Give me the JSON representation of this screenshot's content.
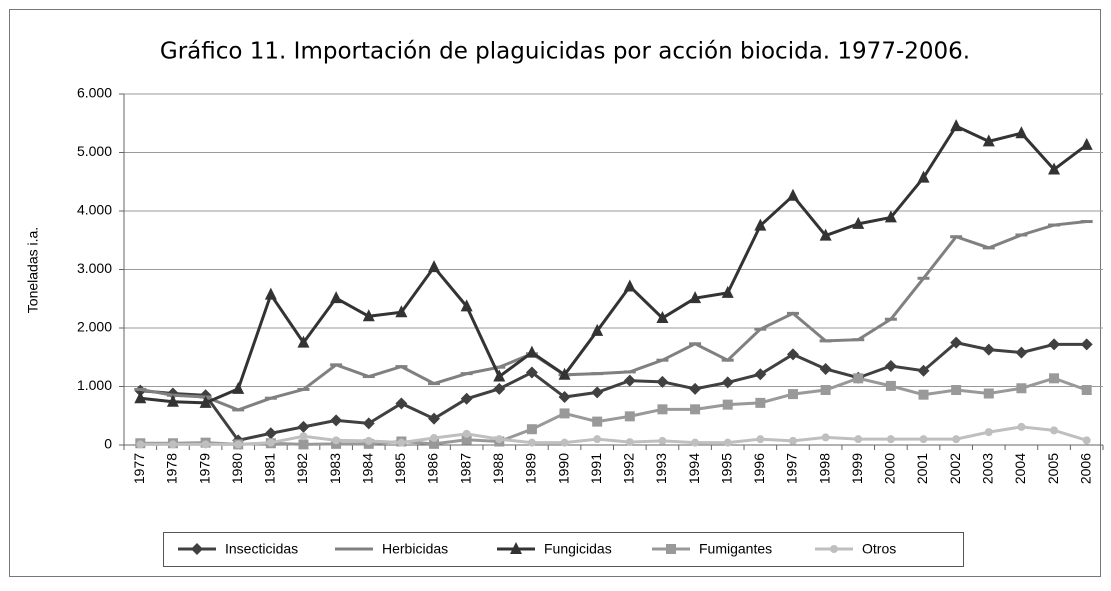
{
  "chart_data": {
    "type": "line",
    "title": "Gráfico 11. Importación de plaguicidas por acción biocida. 1977-2006.",
    "y_label": "Toneladas i.a.",
    "categories": [
      "1977",
      "1978",
      "1979",
      "1980",
      "1981",
      "1982",
      "1983",
      "1984",
      "1985",
      "1986",
      "1987",
      "1988",
      "1989",
      "1990",
      "1991",
      "1992",
      "1993",
      "1994",
      "1995",
      "1996",
      "1997",
      "1998",
      "1999",
      "2000",
      "2001",
      "2002",
      "2003",
      "2004",
      "2005",
      "2006"
    ],
    "ylim": [
      0,
      6000
    ],
    "yticks": [
      0,
      {
        "value": 1000,
        "label": "1.000"
      },
      {
        "value": 2000,
        "label": "2.000"
      },
      {
        "value": 3000,
        "label": "3.000"
      },
      {
        "value": 4000,
        "label": "4.000"
      },
      {
        "value": 5000,
        "label": "5.000"
      },
      {
        "value": 6000,
        "label": "6.000"
      }
    ],
    "grid": true,
    "legend": "bottom",
    "series": [
      {
        "name": "Insecticidas",
        "color": "#404040",
        "marker": "diamond",
        "values": [
          930,
          880,
          850,
          80,
          200,
          310,
          420,
          370,
          710,
          450,
          790,
          960,
          1240,
          820,
          900,
          1100,
          1080,
          960,
          1070,
          1210,
          1550,
          1300,
          1150,
          1350,
          1270,
          1750,
          1630,
          1580,
          1720,
          1720
        ]
      },
      {
        "name": "Herbicidas",
        "color": "#808080",
        "marker": "dash",
        "values": [
          950,
          850,
          820,
          600,
          800,
          950,
          1370,
          1170,
          1340,
          1050,
          1220,
          1330,
          1560,
          1200,
          1220,
          1250,
          1450,
          1730,
          1450,
          1980,
          2250,
          1780,
          1800,
          2150,
          2850,
          3560,
          3370,
          3590,
          3760,
          3820
        ]
      },
      {
        "name": "Fungicidas",
        "color": "#333333",
        "marker": "triangle",
        "values": [
          800,
          740,
          720,
          960,
          2570,
          1750,
          2510,
          2200,
          2270,
          3040,
          2370,
          1170,
          1580,
          1200,
          1950,
          2710,
          2170,
          2510,
          2600,
          3750,
          4260,
          3580,
          3780,
          3890,
          4570,
          5450,
          5190,
          5330,
          4710,
          5130
        ]
      },
      {
        "name": "Fumigantes",
        "color": "#999999",
        "marker": "square",
        "values": [
          30,
          30,
          40,
          10,
          30,
          10,
          20,
          20,
          60,
          20,
          90,
          60,
          270,
          540,
          400,
          490,
          610,
          610,
          690,
          720,
          870,
          940,
          1140,
          1010,
          860,
          940,
          880,
          970,
          1140,
          940
        ]
      },
      {
        "name": "Otros",
        "color": "#bfbfbf",
        "marker": "circle",
        "values": [
          10,
          10,
          10,
          10,
          40,
          150,
          80,
          70,
          40,
          120,
          190,
          100,
          40,
          40,
          100,
          50,
          70,
          40,
          40,
          100,
          70,
          130,
          100,
          100,
          100,
          100,
          220,
          310,
          250,
          80
        ]
      }
    ]
  }
}
